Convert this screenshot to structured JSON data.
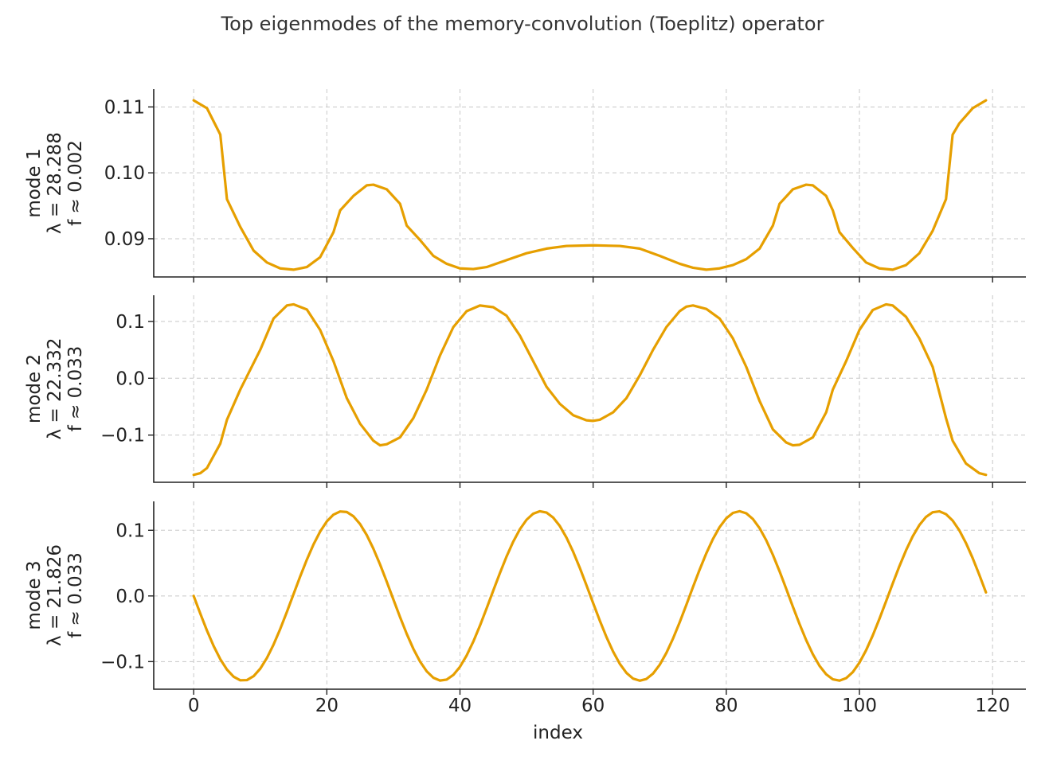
{
  "figure": {
    "title": "Top eigenmodes of the memory-convolution (Toeplitz) operator",
    "line_color": "#E69F00"
  },
  "chart_data": [
    {
      "type": "line",
      "ylabel_lines": [
        "mode 1",
        "λ = 28.288",
        "f ≈ 0.002"
      ],
      "xlabel": "",
      "x_range": [
        0,
        119
      ],
      "xlim": [
        -6,
        125
      ],
      "ylim": [
        0.0842,
        0.1127
      ],
      "xticks": [
        0,
        20,
        40,
        60,
        80,
        100,
        120
      ],
      "xtick_labels_shown": false,
      "yticks": [
        0.09,
        0.1,
        0.11
      ],
      "ytick_labels": [
        "0.09",
        "0.10",
        "0.11"
      ],
      "grid": true,
      "points": [
        [
          0,
          0.111
        ],
        [
          2,
          0.1098
        ],
        [
          4,
          0.1058
        ],
        [
          5,
          0.096
        ],
        [
          7,
          0.0918
        ],
        [
          9,
          0.0882
        ],
        [
          11,
          0.0864
        ],
        [
          13,
          0.0855
        ],
        [
          15,
          0.0853
        ],
        [
          17,
          0.0857
        ],
        [
          19,
          0.0872
        ],
        [
          21,
          0.091
        ],
        [
          22,
          0.0943
        ],
        [
          24,
          0.0965
        ],
        [
          26,
          0.0981
        ],
        [
          27,
          0.0982
        ],
        [
          29,
          0.0975
        ],
        [
          31,
          0.0953
        ],
        [
          32,
          0.092
        ],
        [
          34,
          0.0898
        ],
        [
          36,
          0.0874
        ],
        [
          38,
          0.0862
        ],
        [
          40,
          0.0855
        ],
        [
          42,
          0.0854
        ],
        [
          44,
          0.0857
        ],
        [
          46,
          0.0864
        ],
        [
          50,
          0.0878
        ],
        [
          53,
          0.0885
        ],
        [
          56,
          0.0889
        ],
        [
          60,
          0.089
        ],
        [
          64,
          0.0889
        ],
        [
          67,
          0.0885
        ],
        [
          70,
          0.0874
        ],
        [
          73,
          0.0862
        ],
        [
          75,
          0.0856
        ],
        [
          77,
          0.0853
        ],
        [
          79,
          0.0855
        ],
        [
          81,
          0.086
        ],
        [
          83,
          0.0869
        ],
        [
          85,
          0.0885
        ],
        [
          87,
          0.092
        ],
        [
          88,
          0.0953
        ],
        [
          90,
          0.0975
        ],
        [
          92,
          0.0982
        ],
        [
          93,
          0.0981
        ],
        [
          95,
          0.0965
        ],
        [
          96,
          0.0943
        ],
        [
          97,
          0.091
        ],
        [
          99,
          0.0886
        ],
        [
          101,
          0.0864
        ],
        [
          103,
          0.0855
        ],
        [
          105,
          0.0853
        ],
        [
          107,
          0.086
        ],
        [
          109,
          0.0878
        ],
        [
          111,
          0.0912
        ],
        [
          113,
          0.096
        ],
        [
          114,
          0.1058
        ],
        [
          115,
          0.1075
        ],
        [
          117,
          0.1098
        ],
        [
          119,
          0.111
        ]
      ]
    },
    {
      "type": "line",
      "ylabel_lines": [
        "mode 2",
        "λ = 22.332",
        "f ≈ 0.033"
      ],
      "xlabel": "",
      "x_range": [
        0,
        119
      ],
      "xlim": [
        -6,
        125
      ],
      "ylim": [
        -0.183,
        0.146
      ],
      "xticks": [
        0,
        20,
        40,
        60,
        80,
        100,
        120
      ],
      "xtick_labels_shown": false,
      "yticks": [
        -0.1,
        0.0,
        0.1
      ],
      "ytick_labels": [
        "−0.1",
        "0.0",
        "0.1"
      ],
      "grid": true,
      "points": [
        [
          0,
          -0.17
        ],
        [
          1,
          -0.167
        ],
        [
          2,
          -0.158
        ],
        [
          4,
          -0.115
        ],
        [
          5,
          -0.073
        ],
        [
          7,
          -0.02
        ],
        [
          10,
          0.05
        ],
        [
          12,
          0.105
        ],
        [
          14,
          0.128
        ],
        [
          15,
          0.13
        ],
        [
          17,
          0.121
        ],
        [
          19,
          0.085
        ],
        [
          21,
          0.03
        ],
        [
          23,
          -0.035
        ],
        [
          25,
          -0.08
        ],
        [
          27,
          -0.11
        ],
        [
          28,
          -0.118
        ],
        [
          29,
          -0.116
        ],
        [
          31,
          -0.104
        ],
        [
          33,
          -0.07
        ],
        [
          35,
          -0.02
        ],
        [
          37,
          0.04
        ],
        [
          39,
          0.09
        ],
        [
          41,
          0.118
        ],
        [
          43,
          0.128
        ],
        [
          45,
          0.125
        ],
        [
          47,
          0.11
        ],
        [
          49,
          0.075
        ],
        [
          51,
          0.03
        ],
        [
          53,
          -0.015
        ],
        [
          55,
          -0.045
        ],
        [
          57,
          -0.065
        ],
        [
          59,
          -0.074
        ],
        [
          60,
          -0.075
        ],
        [
          61,
          -0.073
        ],
        [
          63,
          -0.06
        ],
        [
          65,
          -0.035
        ],
        [
          67,
          0.005
        ],
        [
          69,
          0.05
        ],
        [
          71,
          0.09
        ],
        [
          73,
          0.118
        ],
        [
          74,
          0.126
        ],
        [
          75,
          0.128
        ],
        [
          77,
          0.122
        ],
        [
          79,
          0.105
        ],
        [
          81,
          0.07
        ],
        [
          83,
          0.02
        ],
        [
          85,
          -0.04
        ],
        [
          87,
          -0.09
        ],
        [
          89,
          -0.113
        ],
        [
          90,
          -0.118
        ],
        [
          91,
          -0.117
        ],
        [
          93,
          -0.104
        ],
        [
          95,
          -0.06
        ],
        [
          96,
          -0.02
        ],
        [
          98,
          0.03
        ],
        [
          100,
          0.085
        ],
        [
          102,
          0.12
        ],
        [
          104,
          0.13
        ],
        [
          105,
          0.128
        ],
        [
          107,
          0.108
        ],
        [
          109,
          0.07
        ],
        [
          111,
          0.02
        ],
        [
          113,
          -0.07
        ],
        [
          114,
          -0.11
        ],
        [
          116,
          -0.15
        ],
        [
          118,
          -0.167
        ],
        [
          119,
          -0.17
        ]
      ]
    },
    {
      "type": "line",
      "ylabel_lines": [
        "mode 3",
        "λ = 21.826",
        "f ≈ 0.033"
      ],
      "xlabel": "index",
      "x_range": [
        0,
        119
      ],
      "xlim": [
        -6,
        125
      ],
      "ylim": [
        -0.142,
        0.144
      ],
      "xticks": [
        0,
        20,
        40,
        60,
        80,
        100,
        120
      ],
      "xtick_labels": [
        "0",
        "20",
        "40",
        "60",
        "80",
        "100",
        "120"
      ],
      "xtick_labels_shown": true,
      "yticks": [
        -0.1,
        0.0,
        0.1
      ],
      "ytick_labels": [
        "−0.1",
        "0.0",
        "0.1"
      ],
      "grid": true,
      "wave": {
        "form": "sine",
        "amplitude": -0.129,
        "period": 29.8,
        "phase": 0
      }
    }
  ]
}
